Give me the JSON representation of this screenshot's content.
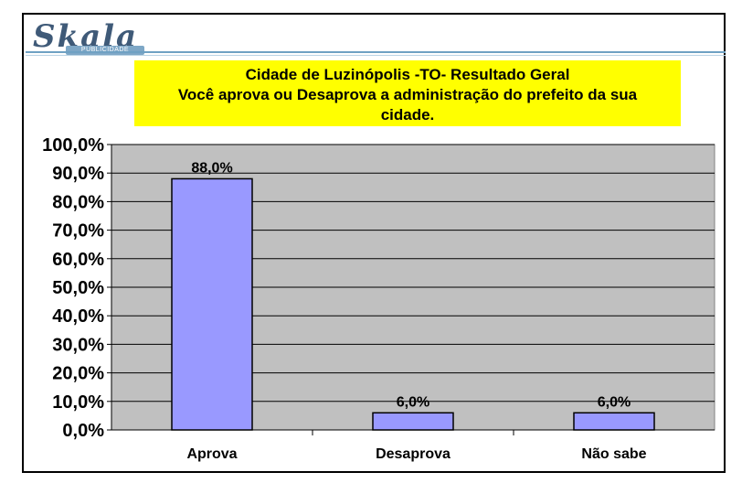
{
  "logo": {
    "text": "Skala",
    "subtext": "PUBLICIDADE"
  },
  "colors": {
    "plot_background": "#c0c0c0",
    "bar_fill": "#9999ff",
    "title_background": "#ffff00",
    "logo_blue": "#3f5a78"
  },
  "chart_data": {
    "type": "bar",
    "title_line1": "Cidade de Luzinópolis -TO- Resultado Geral",
    "title_line2": "Você aprova ou Desaprova a administração do prefeito da sua",
    "title_line3": "cidade.",
    "categories": [
      "Aprova",
      "Desaprova",
      "Não sabe"
    ],
    "values": [
      88.0,
      6.0,
      6.0
    ],
    "data_labels": [
      "88,0%",
      "6,0%",
      "6,0%"
    ],
    "y_ticks": [
      "0,0%",
      "10,0%",
      "20,0%",
      "30,0%",
      "40,0%",
      "50,0%",
      "60,0%",
      "70,0%",
      "80,0%",
      "90,0%",
      "100,0%"
    ],
    "ylim": [
      0,
      100
    ],
    "grid": true,
    "legend": "none"
  }
}
